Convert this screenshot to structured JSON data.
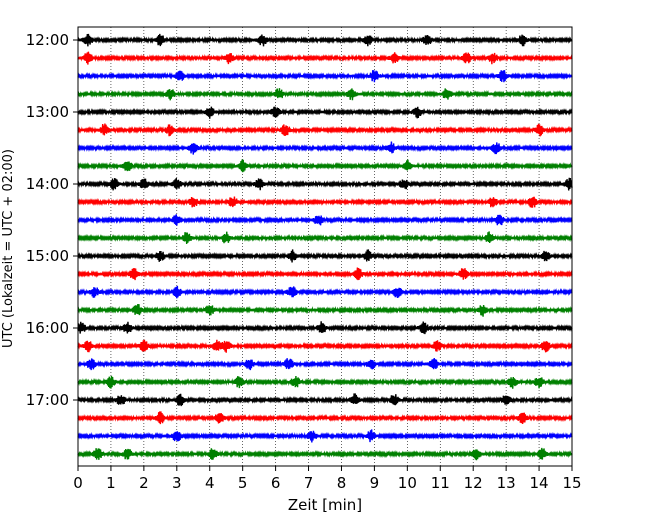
{
  "chart_data": {
    "type": "line",
    "xlabel": "Zeit  [min]",
    "ylabel": "UTC (Lokalzeit = UTC + 02:00)",
    "xlim": [
      0,
      15
    ],
    "x_ticks": [
      "0",
      "1",
      "2",
      "3",
      "4",
      "5",
      "6",
      "7",
      "8",
      "9",
      "10",
      "11",
      "12",
      "13",
      "14",
      "15"
    ],
    "y_ticks": [
      "12:00",
      "13:00",
      "14:00",
      "15:00",
      "16:00",
      "17:00"
    ],
    "grid": "vertical dotted",
    "trace_interval_minutes": 15,
    "trace_start": "12:00",
    "trace_end": "17:45",
    "series": [
      {
        "start": "12:00",
        "color": "#000000",
        "events": [
          0.3,
          2.5,
          5.6,
          8.8,
          10.6,
          13.5
        ]
      },
      {
        "start": "12:15",
        "color": "#ff0000",
        "events": [
          0.3,
          4.6,
          9.6,
          11.8,
          12.6
        ]
      },
      {
        "start": "12:30",
        "color": "#0000ff",
        "events": [
          3.1,
          9.0,
          12.9
        ]
      },
      {
        "start": "12:45",
        "color": "#008000",
        "events": [
          2.8,
          6.1,
          8.3,
          11.2
        ]
      },
      {
        "start": "13:00",
        "color": "#000000",
        "events": [
          4.0,
          6.0,
          10.3
        ]
      },
      {
        "start": "13:15",
        "color": "#ff0000",
        "events": [
          0.8,
          2.8,
          6.3,
          14.0
        ]
      },
      {
        "start": "13:30",
        "color": "#0000ff",
        "events": [
          3.5,
          9.5,
          12.7
        ]
      },
      {
        "start": "13:45",
        "color": "#008000",
        "events": [
          1.5,
          5.0,
          10.0
        ]
      },
      {
        "start": "14:00",
        "color": "#000000",
        "events": [
          1.1,
          2.0,
          3.0,
          5.5,
          9.9,
          14.9
        ]
      },
      {
        "start": "14:15",
        "color": "#ff0000",
        "events": [
          3.5,
          4.7,
          12.6,
          13.8
        ]
      },
      {
        "start": "14:30",
        "color": "#0000ff",
        "events": [
          3.0,
          7.3,
          12.8
        ]
      },
      {
        "start": "14:45",
        "color": "#008000",
        "events": [
          3.3,
          4.5,
          12.5
        ]
      },
      {
        "start": "15:00",
        "color": "#000000",
        "events": [
          2.5,
          6.5,
          8.8,
          14.2
        ]
      },
      {
        "start": "15:15",
        "color": "#ff0000",
        "events": [
          1.7,
          8.5,
          11.7
        ]
      },
      {
        "start": "15:30",
        "color": "#0000ff",
        "events": [
          0.5,
          3.0,
          6.5,
          9.7
        ]
      },
      {
        "start": "15:45",
        "color": "#008000",
        "events": [
          1.8,
          4.0,
          12.3
        ]
      },
      {
        "start": "16:00",
        "color": "#000000",
        "events": [
          0.1,
          1.5,
          7.4,
          10.5
        ]
      },
      {
        "start": "16:15",
        "color": "#ff0000",
        "events": [
          0.3,
          2.0,
          4.2,
          4.5,
          10.9,
          14.2
        ]
      },
      {
        "start": "16:30",
        "color": "#0000ff",
        "events": [
          0.4,
          5.2,
          6.4,
          8.9,
          10.8
        ]
      },
      {
        "start": "16:45",
        "color": "#008000",
        "events": [
          1.0,
          4.9,
          6.6,
          13.2,
          14.0
        ]
      },
      {
        "start": "17:00",
        "color": "#000000",
        "events": [
          1.3,
          3.1,
          8.4,
          9.6,
          13.0
        ]
      },
      {
        "start": "17:15",
        "color": "#ff0000",
        "events": [
          2.5,
          4.3,
          13.5
        ]
      },
      {
        "start": "17:30",
        "color": "#0000ff",
        "events": [
          3.0,
          7.1,
          8.9
        ]
      },
      {
        "start": "17:45",
        "color": "#008000",
        "events": [
          0.6,
          1.5,
          4.1,
          12.1,
          14.1
        ]
      }
    ]
  }
}
